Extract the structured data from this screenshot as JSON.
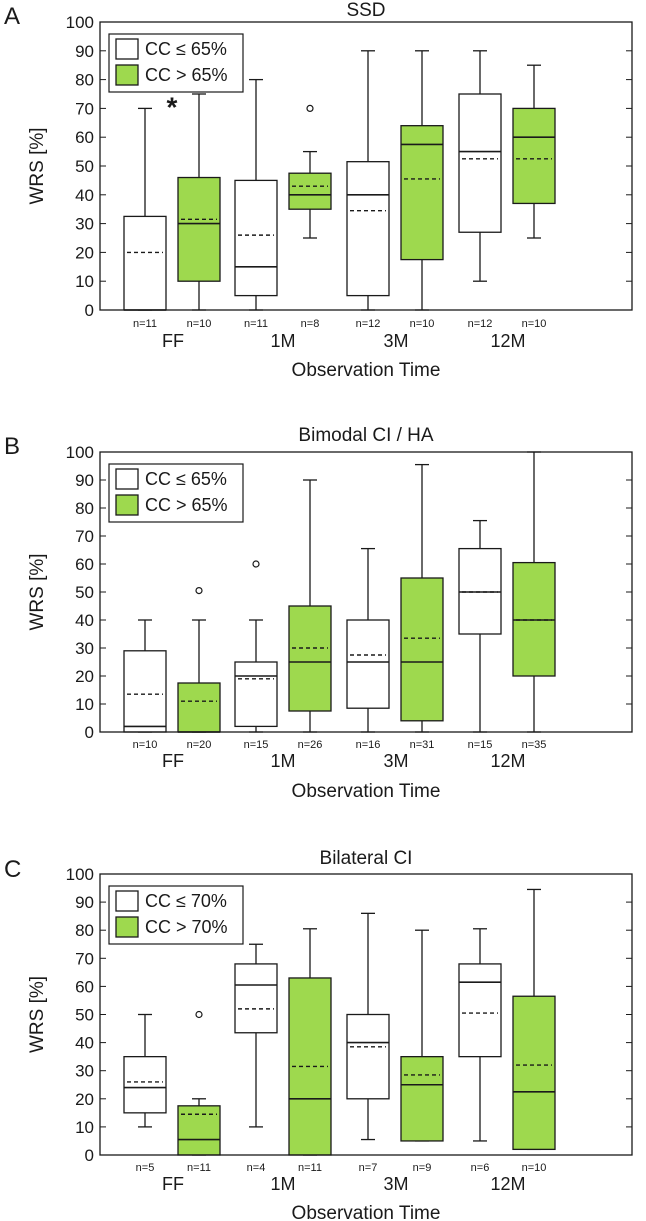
{
  "colors": {
    "low": "#ffffff",
    "high": "#9ed94e",
    "stroke": "#1a1a1a"
  },
  "chart_data": [
    {
      "type": "box",
      "panel": "A",
      "title": "SSD",
      "ylabel": "WRS [%]",
      "xlabel": "Observation Time",
      "ylim": [
        0,
        100
      ],
      "yticks": [
        0,
        10,
        20,
        30,
        40,
        50,
        60,
        70,
        80,
        90,
        100
      ],
      "categories": [
        "FF",
        "1M",
        "3M",
        "12M"
      ],
      "legend": {
        "position": "top-left",
        "entries": [
          "CC ≤ 65%",
          "CC > 65%"
        ]
      },
      "annotations": [
        {
          "text": "*",
          "category": "FF"
        }
      ],
      "series": [
        {
          "name": "CC ≤ 65%",
          "boxes": [
            {
              "min": 0,
              "q1": 0,
              "median": 0,
              "q3": 32.5,
              "max": 70,
              "mean": 20,
              "n": "n=11",
              "outliers": []
            },
            {
              "min": 0,
              "q1": 5,
              "median": 15,
              "q3": 45,
              "max": 80,
              "mean": 26,
              "n": "n=11",
              "outliers": []
            },
            {
              "min": 0,
              "q1": 5,
              "median": 40,
              "q3": 51.5,
              "max": 90,
              "mean": 34.5,
              "n": "n=12",
              "outliers": []
            },
            {
              "min": 10,
              "q1": 27,
              "median": 55,
              "q3": 75,
              "max": 90,
              "mean": 52.5,
              "n": "n=12",
              "outliers": []
            }
          ]
        },
        {
          "name": "CC > 65%",
          "boxes": [
            {
              "min": 0,
              "q1": 10,
              "median": 30,
              "q3": 46,
              "max": 75,
              "mean": 31.5,
              "n": "n=10",
              "outliers": []
            },
            {
              "min": 25,
              "q1": 35,
              "median": 40,
              "q3": 47.5,
              "max": 55,
              "mean": 43,
              "n": "n=8",
              "outliers": [
                70
              ]
            },
            {
              "min": 0,
              "q1": 17.5,
              "median": 57.5,
              "q3": 64,
              "max": 90,
              "mean": 45.5,
              "n": "n=10",
              "outliers": []
            },
            {
              "min": 25,
              "q1": 37,
              "median": 60,
              "q3": 70,
              "max": 85,
              "mean": 52.5,
              "n": "n=10",
              "outliers": []
            }
          ]
        }
      ]
    },
    {
      "type": "box",
      "panel": "B",
      "title": "Bimodal CI / HA",
      "ylabel": "WRS [%]",
      "xlabel": "Observation Time",
      "ylim": [
        0,
        100
      ],
      "yticks": [
        0,
        10,
        20,
        30,
        40,
        50,
        60,
        70,
        80,
        90,
        100
      ],
      "categories": [
        "FF",
        "1M",
        "3M",
        "12M"
      ],
      "legend": {
        "position": "top-left",
        "entries": [
          "CC ≤ 65%",
          "CC > 65%"
        ]
      },
      "annotations": [],
      "series": [
        {
          "name": "CC ≤ 65%",
          "boxes": [
            {
              "min": 0,
              "q1": 0,
              "median": 2,
              "q3": 29,
              "max": 40,
              "mean": 13.5,
              "n": "n=10",
              "outliers": []
            },
            {
              "min": 0,
              "q1": 2,
              "median": 20,
              "q3": 25,
              "max": 40,
              "mean": 19,
              "n": "n=15",
              "outliers": [
                60
              ]
            },
            {
              "min": 0,
              "q1": 8.5,
              "median": 25,
              "q3": 40,
              "max": 65.5,
              "mean": 27.5,
              "n": "n=16",
              "outliers": []
            },
            {
              "min": 0,
              "q1": 35,
              "median": 50,
              "q3": 65.5,
              "max": 75.5,
              "mean": 50,
              "n": "n=15",
              "outliers": []
            }
          ]
        },
        {
          "name": "CC > 65%",
          "boxes": [
            {
              "min": 0,
              "q1": 0,
              "median": 0,
              "q3": 17.5,
              "max": 40,
              "mean": 11,
              "n": "n=20",
              "outliers": [
                50.5
              ]
            },
            {
              "min": 0,
              "q1": 7.5,
              "median": 25,
              "q3": 45,
              "max": 90,
              "mean": 30,
              "n": "n=26",
              "outliers": []
            },
            {
              "min": 0,
              "q1": 4,
              "median": 25,
              "q3": 55,
              "max": 95.5,
              "mean": 33.5,
              "n": "n=31",
              "outliers": []
            },
            {
              "min": 0,
              "q1": 20,
              "median": 40,
              "q3": 60.5,
              "max": 100,
              "mean": 40,
              "n": "n=35",
              "outliers": []
            }
          ]
        }
      ]
    },
    {
      "type": "box",
      "panel": "C",
      "title": "Bilateral CI",
      "ylabel": "WRS [%]",
      "xlabel": "Observation Time",
      "ylim": [
        0,
        100
      ],
      "yticks": [
        0,
        10,
        20,
        30,
        40,
        50,
        60,
        70,
        80,
        90,
        100
      ],
      "categories": [
        "FF",
        "1M",
        "3M",
        "12M"
      ],
      "legend": {
        "position": "top-left",
        "entries": [
          "CC ≤ 70%",
          "CC > 70%"
        ]
      },
      "annotations": [],
      "series": [
        {
          "name": "CC ≤ 70%",
          "boxes": [
            {
              "min": 10,
              "q1": 15,
              "median": 24,
              "q3": 35,
              "max": 50,
              "mean": 26,
              "n": "n=5",
              "outliers": []
            },
            {
              "min": 10,
              "q1": 43.5,
              "median": 60.5,
              "q3": 68,
              "max": 75,
              "mean": 52,
              "n": "n=4",
              "outliers": []
            },
            {
              "min": 5.5,
              "q1": 20,
              "median": 40,
              "q3": 50,
              "max": 86,
              "mean": 38.5,
              "n": "n=7",
              "outliers": []
            },
            {
              "min": 5,
              "q1": 35,
              "median": 61.5,
              "q3": 68,
              "max": 80.5,
              "mean": 50.5,
              "n": "n=6",
              "outliers": []
            }
          ]
        },
        {
          "name": "CC > 70%",
          "boxes": [
            {
              "min": 0,
              "q1": 0,
              "median": 5.5,
              "q3": 17.5,
              "max": 20,
              "mean": 14.5,
              "n": "n=11",
              "outliers": [
                50
              ]
            },
            {
              "min": 0,
              "q1": 0,
              "median": 20,
              "q3": 63,
              "max": 80.5,
              "mean": 31.5,
              "n": "n=11",
              "outliers": []
            },
            {
              "min": 5,
              "q1": 5,
              "median": 25,
              "q3": 35,
              "max": 80,
              "mean": 28.5,
              "n": "n=9",
              "outliers": []
            },
            {
              "min": 2,
              "q1": 2,
              "median": 22.5,
              "q3": 56.5,
              "max": 94.5,
              "mean": 32,
              "n": "n=10",
              "outliers": []
            }
          ]
        }
      ]
    }
  ]
}
